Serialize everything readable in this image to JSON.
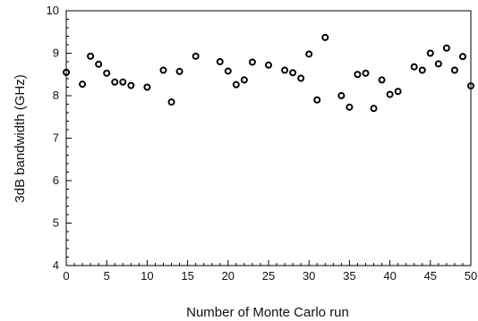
{
  "chart_data": {
    "type": "scatter",
    "title": "",
    "xlabel": "Number of Monte Carlo run",
    "ylabel": "3dB bandwidth (GHz)",
    "xlim": [
      0,
      50
    ],
    "ylim": [
      4,
      10
    ],
    "x_ticks": [
      0,
      5,
      10,
      15,
      20,
      25,
      30,
      35,
      40,
      45,
      50
    ],
    "y_ticks": [
      4,
      5,
      6,
      7,
      8,
      9,
      10
    ],
    "x_minor_step": 1,
    "y_minor_step": 0.2,
    "grid": false,
    "legend": "none",
    "marker": "open-circle",
    "colors": {
      "marker": "#000000",
      "axis": "#000000"
    },
    "series": [
      {
        "x": [
          0,
          2,
          3,
          4,
          5,
          6,
          7,
          8,
          10,
          12,
          13,
          14,
          16,
          19,
          20,
          21,
          22,
          23,
          25,
          27,
          28,
          29,
          30,
          31,
          32,
          34,
          35,
          36,
          37,
          38,
          39,
          40,
          41,
          43,
          44,
          45,
          46,
          47,
          48,
          49,
          50
        ],
        "y": [
          8.55,
          8.27,
          8.93,
          8.74,
          8.53,
          8.32,
          8.32,
          8.24,
          8.2,
          8.6,
          7.85,
          8.57,
          8.93,
          8.8,
          8.58,
          8.26,
          8.37,
          8.79,
          8.72,
          8.6,
          8.54,
          8.41,
          8.98,
          7.9,
          9.37,
          8.0,
          7.73,
          8.5,
          8.53,
          7.7,
          8.37,
          8.03,
          8.1,
          8.68,
          8.6,
          9.0,
          8.75,
          9.12,
          8.6,
          8.92,
          8.23
        ]
      }
    ]
  }
}
